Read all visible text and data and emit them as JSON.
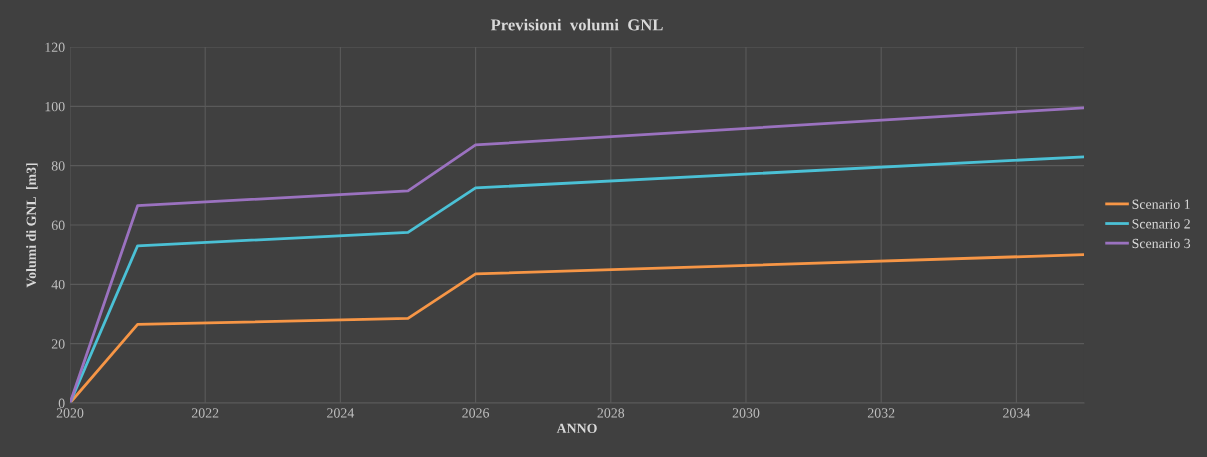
{
  "chart_data": {
    "type": "line",
    "title": "Previsioni  volumi  GNL",
    "xlabel": "ANNO",
    "ylabel": "Volumi di GNL  [m3]",
    "x": [
      2020,
      2021,
      2025,
      2026,
      2035
    ],
    "series": [
      {
        "name": "Scenario 1",
        "color": "#f79646",
        "values": [
          0,
          26.5,
          28.5,
          43.5,
          50
        ]
      },
      {
        "name": "Scenario 2",
        "color": "#4bc1d6",
        "values": [
          0,
          53,
          57.5,
          72.5,
          83
        ]
      },
      {
        "name": "Scenario 3",
        "color": "#9b72c0",
        "values": [
          0,
          66.5,
          71.5,
          87,
          99.5
        ]
      }
    ],
    "xlim": [
      2020,
      2035
    ],
    "xticks": [
      2020,
      2022,
      2024,
      2026,
      2028,
      2030,
      2032,
      2034
    ],
    "ylim": [
      0,
      120
    ],
    "yticks": [
      0,
      20,
      40,
      60,
      80,
      100,
      120
    ],
    "grid": true,
    "legend": "right",
    "marker": "none",
    "line_style": "solid"
  }
}
